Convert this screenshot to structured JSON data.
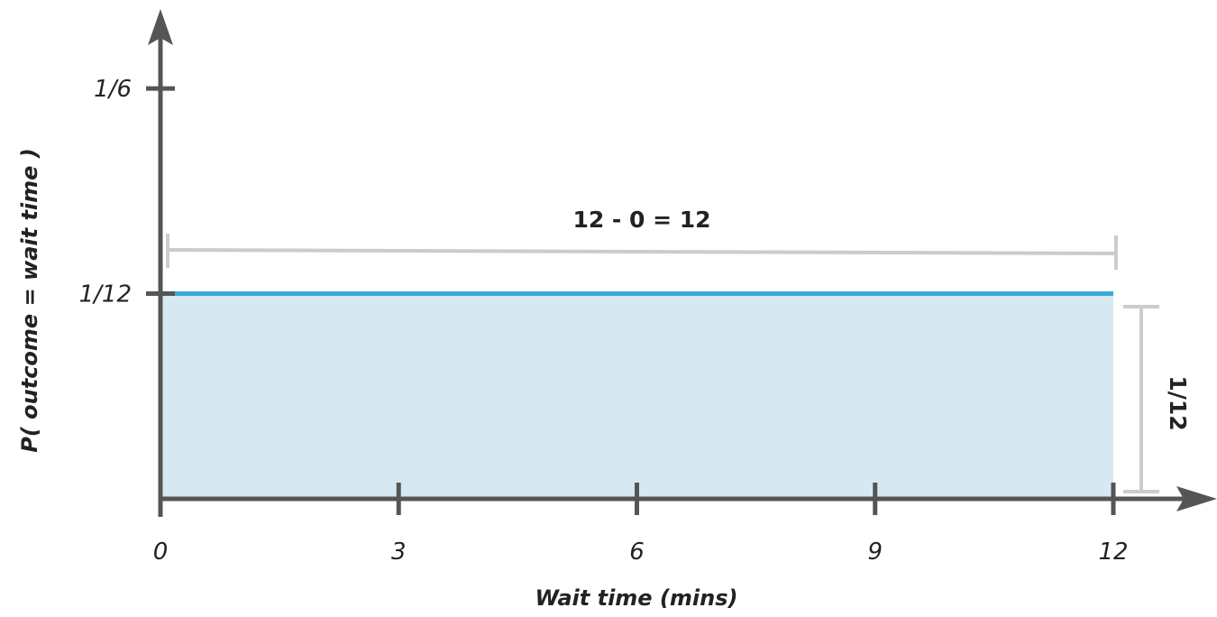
{
  "chart_data": {
    "type": "area",
    "title": "",
    "xlabel": "Wait time (mins)",
    "ylabel": "P( outcome  = wait time )",
    "xlim": [
      0,
      12
    ],
    "ylim": [
      0,
      0.1667
    ],
    "x_ticks": [
      {
        "value": 0,
        "label": "0"
      },
      {
        "value": 3,
        "label": "3"
      },
      {
        "value": 6,
        "label": "6"
      },
      {
        "value": 9,
        "label": "9"
      },
      {
        "value": 12,
        "label": "12"
      }
    ],
    "y_ticks": [
      {
        "value": 0.08333,
        "label": "1/12"
      },
      {
        "value": 0.16667,
        "label": "1/6"
      }
    ],
    "series": [
      {
        "x": [
          0,
          12
        ],
        "y": [
          0.08333,
          0.08333
        ]
      }
    ],
    "annotations": {
      "width_label": "12 - 0  = 12",
      "height_label": "1/12"
    },
    "grid": false,
    "colors": {
      "axis": "#555555",
      "line": "#3aabd2",
      "fill": "#d6e9f3",
      "bracket": "#cccccc"
    }
  }
}
